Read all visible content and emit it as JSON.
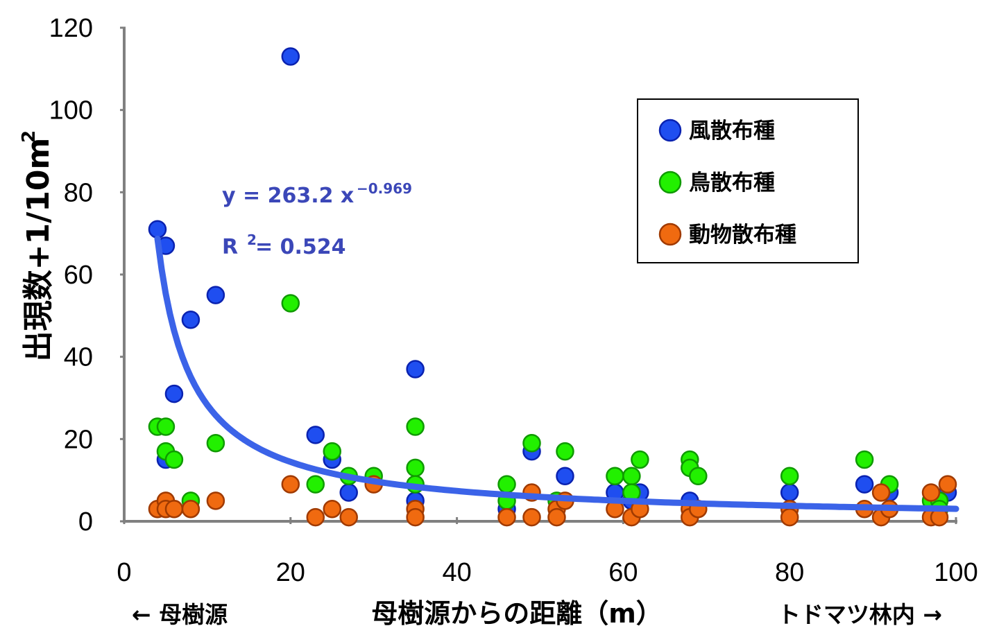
{
  "chart_data": {
    "type": "scatter",
    "ylabel": "出現数+1/10m",
    "ylabel_superscript": "2",
    "xlabel": "母樹源からの距離（m）",
    "xlabel_left": "← 母樹源",
    "xlabel_right": "トドマツ林内 →",
    "xlim": [
      0,
      100
    ],
    "ylim": [
      0,
      120
    ],
    "xticks": [
      0,
      20,
      40,
      60,
      80,
      100
    ],
    "yticks": [
      0,
      20,
      40,
      60,
      80,
      100,
      120
    ],
    "legend_position": "top-right",
    "series": [
      {
        "name": "風散布種",
        "color": "#1f4ef0",
        "edge": "#0a22b0",
        "points": [
          [
            4,
            71
          ],
          [
            5,
            67
          ],
          [
            6,
            31
          ],
          [
            8,
            49
          ],
          [
            11,
            55
          ],
          [
            20,
            113
          ],
          [
            23,
            21
          ],
          [
            25,
            15
          ],
          [
            27,
            7
          ],
          [
            35,
            37
          ],
          [
            35,
            5
          ],
          [
            5,
            15
          ],
          [
            46,
            3
          ],
          [
            49,
            17
          ],
          [
            53,
            11
          ],
          [
            59,
            7
          ],
          [
            61,
            5
          ],
          [
            62,
            7
          ],
          [
            68,
            5
          ],
          [
            80,
            7
          ],
          [
            89,
            9
          ],
          [
            92,
            7
          ],
          [
            99,
            7
          ]
        ]
      },
      {
        "name": "鳥散布種",
        "color": "#22f000",
        "edge": "#0f9a00",
        "points": [
          [
            4,
            23
          ],
          [
            5,
            23
          ],
          [
            5,
            17
          ],
          [
            6,
            15
          ],
          [
            8,
            5
          ],
          [
            11,
            19
          ],
          [
            20,
            53
          ],
          [
            23,
            9
          ],
          [
            25,
            17
          ],
          [
            27,
            11
          ],
          [
            30,
            11
          ],
          [
            35,
            23
          ],
          [
            35,
            13
          ],
          [
            35,
            9
          ],
          [
            46,
            9
          ],
          [
            46,
            5
          ],
          [
            49,
            19
          ],
          [
            52,
            5
          ],
          [
            53,
            17
          ],
          [
            59,
            11
          ],
          [
            61,
            11
          ],
          [
            61,
            7
          ],
          [
            62,
            15
          ],
          [
            68,
            15
          ],
          [
            68,
            13
          ],
          [
            69,
            11
          ],
          [
            80,
            11
          ],
          [
            89,
            15
          ],
          [
            92,
            9
          ],
          [
            97,
            5
          ],
          [
            98,
            5
          ],
          [
            98,
            3
          ]
        ]
      },
      {
        "name": "動物散布種",
        "color": "#f06a10",
        "edge": "#a03a00",
        "points": [
          [
            4,
            3
          ],
          [
            5,
            5
          ],
          [
            5,
            3
          ],
          [
            6,
            3
          ],
          [
            8,
            3
          ],
          [
            11,
            5
          ],
          [
            20,
            9
          ],
          [
            23,
            1
          ],
          [
            25,
            3
          ],
          [
            27,
            1
          ],
          [
            30,
            9
          ],
          [
            35,
            3
          ],
          [
            35,
            1
          ],
          [
            46,
            1
          ],
          [
            49,
            7
          ],
          [
            49,
            1
          ],
          [
            52,
            3
          ],
          [
            52,
            1
          ],
          [
            53,
            5
          ],
          [
            59,
            3
          ],
          [
            61,
            1
          ],
          [
            62,
            3
          ],
          [
            68,
            3
          ],
          [
            68,
            1
          ],
          [
            69,
            3
          ],
          [
            80,
            3
          ],
          [
            80,
            1
          ],
          [
            89,
            3
          ],
          [
            91,
            7
          ],
          [
            91,
            1
          ],
          [
            92,
            3
          ],
          [
            97,
            7
          ],
          [
            97,
            1
          ],
          [
            98,
            1
          ],
          [
            99,
            9
          ]
        ]
      }
    ],
    "trendline": {
      "label": "y = 263.2 x",
      "exponent_label": "−0.969",
      "r2_prefix": "R",
      "r2_superscript": "2",
      "r2_value": " = 0.524",
      "a": 263.2,
      "b": -0.969,
      "x_from": 4,
      "x_to": 100,
      "color": "#3b63e8"
    }
  }
}
